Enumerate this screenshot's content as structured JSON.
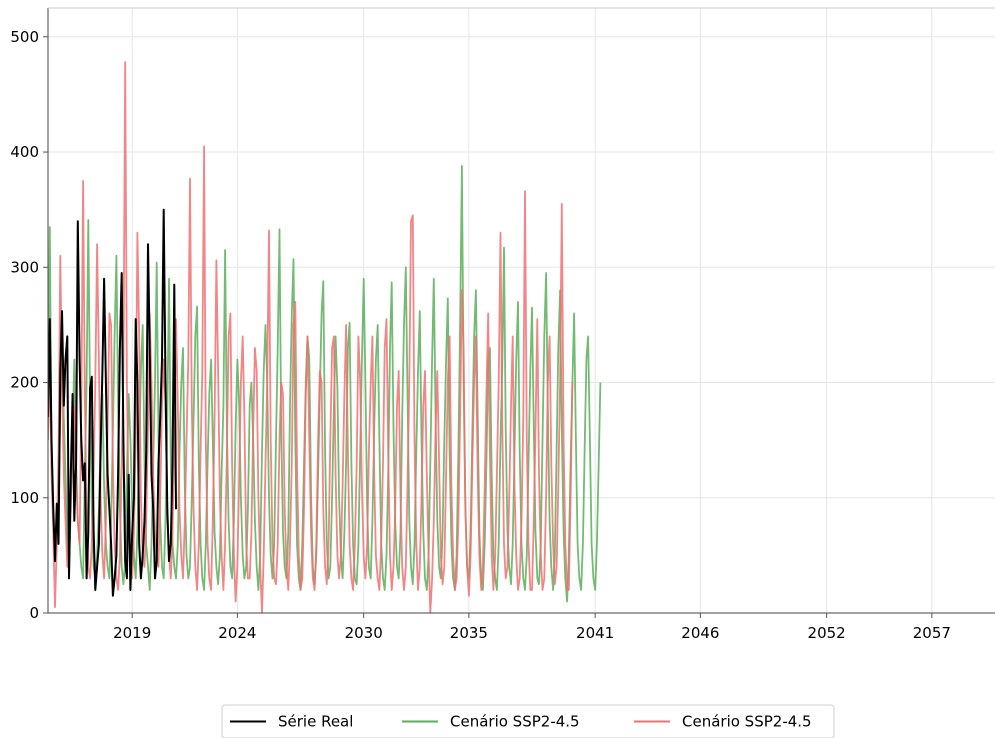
{
  "chart_data": {
    "type": "line",
    "title": "",
    "xlabel": "",
    "ylabel": "",
    "xlim": [
      2015.0,
      2060.0
    ],
    "ylim": [
      0,
      525
    ],
    "grid": true,
    "legend_position": "bottom-center",
    "x_ticks": [
      {
        "label": "2019",
        "x": 2019
      },
      {
        "label": "2024",
        "x": 2024
      },
      {
        "label": "2030",
        "x": 2030
      },
      {
        "label": "2035",
        "x": 2035
      },
      {
        "label": "2041",
        "x": 2041
      },
      {
        "label": "2046",
        "x": 2046
      },
      {
        "label": "2052",
        "x": 2052
      },
      {
        "label": "2057",
        "x": 2057
      }
    ],
    "y_ticks": [
      0,
      100,
      200,
      300,
      400,
      500
    ],
    "series": [
      {
        "name": "Série Real",
        "color": "#000000",
        "x_start": 2015.0,
        "x_step": 0.0833333,
        "values": [
          170,
          255,
          150,
          90,
          45,
          95,
          60,
          210,
          262,
          180,
          220,
          240,
          30,
          120,
          190,
          80,
          130,
          340,
          220,
          150,
          115,
          130,
          30,
          70,
          195,
          205,
          72,
          20,
          40,
          60,
          140,
          210,
          290,
          200,
          120,
          90,
          60,
          15,
          30,
          50,
          120,
          230,
          295,
          150,
          45,
          30,
          120,
          20,
          70,
          100,
          255,
          200,
          60,
          30,
          50,
          80,
          140,
          320,
          230,
          120,
          90,
          30,
          45,
          130,
          170,
          220,
          350,
          200,
          90,
          45,
          60,
          130,
          285,
          90
        ]
      },
      {
        "name": "Cenário SSP2-4.5",
        "color": "#5aaf5a",
        "x_start": 2015.0,
        "x_step": 0.0833333,
        "values": [
          160,
          335,
          140,
          80,
          50,
          70,
          95,
          180,
          250,
          170,
          120,
          60,
          40,
          90,
          160,
          220,
          130,
          80,
          60,
          40,
          30,
          120,
          200,
          341,
          180,
          90,
          40,
          30,
          50,
          90,
          150,
          190,
          110,
          60,
          40,
          30,
          80,
          160,
          240,
          310,
          180,
          90,
          40,
          25,
          45,
          120,
          190,
          150,
          90,
          50,
          30,
          70,
          140,
          210,
          250,
          130,
          60,
          40,
          20,
          60,
          130,
          200,
          304,
          150,
          80,
          40,
          30,
          80,
          170,
          290,
          130,
          60,
          40,
          30,
          60,
          140,
          200,
          230,
          110,
          50,
          30,
          40,
          100,
          170,
          240,
          266,
          130,
          60,
          30,
          20,
          60,
          130,
          190,
          220,
          150,
          70,
          40,
          25,
          50,
          120,
          180,
          315,
          160,
          80,
          40,
          30,
          80,
          160,
          220,
          180,
          100,
          50,
          30,
          40,
          90,
          180,
          200,
          150,
          80,
          40,
          20,
          50,
          140,
          210,
          250,
          200,
          100,
          50,
          30,
          60,
          150,
          230,
          333,
          160,
          70,
          40,
          30,
          70,
          180,
          260,
          307,
          150,
          60,
          30,
          20,
          60,
          130,
          200,
          240,
          220,
          100,
          40,
          25,
          50,
          120,
          190,
          260,
          288,
          140,
          60,
          30,
          40,
          100,
          180,
          240,
          195,
          100,
          50,
          30,
          70,
          130,
          230,
          252,
          130,
          60,
          30,
          25,
          60,
          140,
          220,
          290,
          200,
          90,
          40,
          30,
          80,
          160,
          220,
          250,
          150,
          60,
          30,
          20,
          50,
          120,
          230,
          287,
          160,
          80,
          40,
          30,
          70,
          170,
          250,
          300,
          190,
          80,
          40,
          25,
          60,
          140,
          210,
          262,
          150,
          70,
          30,
          20,
          50,
          130,
          220,
          290,
          170,
          80,
          40,
          30,
          70,
          150,
          220,
          273,
          140,
          60,
          30,
          20,
          50,
          140,
          250,
          388,
          200,
          90,
          40,
          30,
          70,
          160,
          240,
          280,
          170,
          70,
          30,
          20,
          60,
          130,
          220,
          230,
          120,
          50,
          30,
          20,
          60,
          150,
          210,
          317,
          160,
          70,
          40,
          25,
          60,
          140,
          220,
          270,
          140,
          60,
          30,
          20,
          50,
          130,
          210,
          265,
          160,
          70,
          30,
          25,
          60,
          150,
          240,
          295,
          180,
          80,
          40,
          20,
          50,
          140,
          230,
          280,
          160,
          70,
          30,
          10,
          50,
          130,
          200,
          260,
          150,
          60,
          30,
          20,
          60,
          140,
          220,
          240,
          150,
          60,
          30,
          20,
          60,
          130,
          200
        ]
      },
      {
        "name": "Cenário SSP2-4.5",
        "color": "#f07070",
        "x_start": 2015.0,
        "x_step": 0.0833333,
        "values": [
          150,
          220,
          120,
          70,
          5,
          60,
          140,
          310,
          200,
          120,
          80,
          40,
          60,
          100,
          150,
          180,
          120,
          80,
          60,
          180,
          375,
          190,
          90,
          40,
          30,
          60,
          120,
          200,
          320,
          220,
          100,
          50,
          30,
          80,
          160,
          260,
          250,
          130,
          60,
          30,
          20,
          50,
          130,
          210,
          478,
          200,
          90,
          40,
          30,
          70,
          150,
          330,
          240,
          100,
          50,
          40,
          80,
          160,
          260,
          200,
          120,
          70,
          50,
          40,
          100,
          180,
          220,
          180,
          90,
          50,
          30,
          70,
          150,
          255,
          180,
          90,
          50,
          30,
          80,
          150,
          220,
          377,
          180,
          90,
          40,
          20,
          60,
          140,
          210,
          405,
          150,
          60,
          30,
          20,
          80,
          170,
          306,
          210,
          100,
          50,
          20,
          60,
          140,
          240,
          260,
          130,
          50,
          10,
          40,
          120,
          200,
          240,
          170,
          60,
          30,
          30,
          70,
          160,
          230,
          210,
          100,
          40,
          0,
          50,
          130,
          200,
          332,
          150,
          60,
          30,
          25,
          60,
          150,
          200,
          190,
          90,
          40,
          20,
          60,
          130,
          250,
          270,
          130,
          50,
          20,
          30,
          90,
          190,
          240,
          150,
          70,
          30,
          20,
          60,
          150,
          210,
          200,
          90,
          40,
          25,
          60,
          150,
          230,
          240,
          120,
          50,
          30,
          50,
          110,
          190,
          250,
          140,
          60,
          30,
          20,
          60,
          130,
          240,
          200,
          110,
          50,
          30,
          60,
          140,
          200,
          240,
          120,
          50,
          30,
          20,
          60,
          130,
          230,
          255,
          140,
          50,
          20,
          40,
          90,
          180,
          210,
          100,
          40,
          20,
          40,
          110,
          200,
          340,
          345,
          150,
          60,
          20,
          40,
          100,
          180,
          210,
          120,
          50,
          0,
          30,
          80,
          160,
          210,
          130,
          50,
          25,
          40,
          120,
          200,
          240,
          110,
          50,
          20,
          30,
          80,
          170,
          280,
          230,
          90,
          40,
          15,
          50,
          130,
          200,
          240,
          120,
          50,
          20,
          40,
          110,
          190,
          260,
          140,
          50,
          20,
          50,
          120,
          200,
          330,
          170,
          60,
          30,
          40,
          100,
          180,
          240,
          110,
          50,
          20,
          30,
          80,
          170,
          366,
          150,
          60,
          20,
          20,
          80,
          160,
          255,
          120,
          50,
          20,
          30,
          100,
          200,
          240,
          130,
          60,
          25,
          40,
          110,
          200,
          355,
          150,
          60,
          20,
          20,
          100,
          200
        ]
      }
    ]
  },
  "legend": {
    "items": [
      {
        "label": "Série Real",
        "color": "#000000"
      },
      {
        "label": "Cenário SSP2-4.5",
        "color": "#5aaf5a"
      },
      {
        "label": "Cenário SSP2-4.5",
        "color": "#f07070"
      }
    ]
  }
}
